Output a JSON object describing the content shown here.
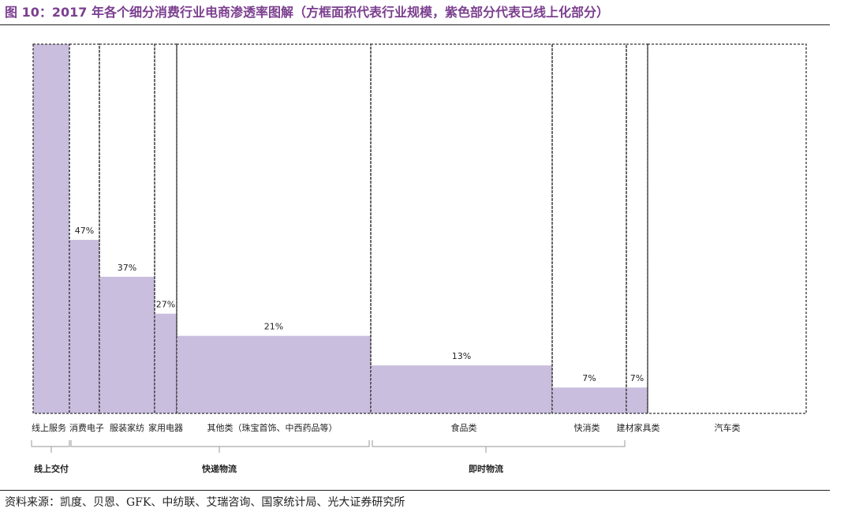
{
  "title": "图 10：2017 年各个细分消费行业电商渗透率图解（方框面积代表行业规模，紫色部分代表已线上化部分）",
  "source": "资料来源：凯度、贝恩、GFK、中纺联、艾瑞咨询、国家统计局、光大证券研究所",
  "colors": {
    "title": "#7b3f8f",
    "fill": "#c9bedd",
    "outline": "#333333",
    "text": "#222222"
  },
  "chart_data": {
    "type": "bar",
    "ylim": [
      0,
      100
    ],
    "categories": [
      "线上服务",
      "消费电子",
      "服装家纺",
      "家用电器",
      "其他类（珠宝首饰、中西药品等）",
      "食品类",
      "快消类",
      "建材家具类",
      "汽车类"
    ],
    "values": [
      100,
      47,
      37,
      27,
      21,
      13,
      7,
      7,
      0
    ],
    "value_labels": [
      "",
      "47%",
      "37%",
      "27%",
      "21%",
      "13%",
      "7%",
      "7%",
      ""
    ],
    "groups": [
      {
        "label": "线上交付",
        "categories": [
          "线上服务"
        ]
      },
      {
        "label": "快递物流",
        "categories": [
          "消费电子",
          "服装家纺",
          "家用电器",
          "其他类（珠宝首饰、中西药品等）"
        ]
      },
      {
        "label": "即时物流",
        "categories": [
          "食品类",
          "快消类"
        ]
      }
    ]
  }
}
